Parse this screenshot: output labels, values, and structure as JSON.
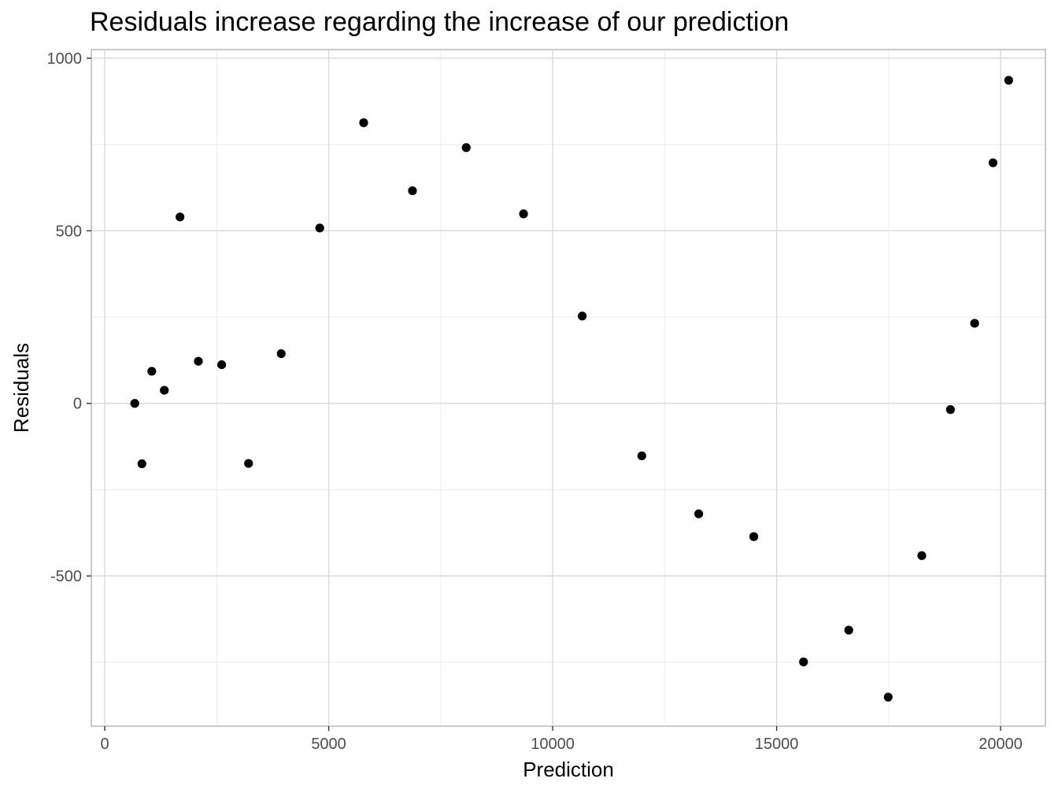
{
  "chart_data": {
    "type": "scatter",
    "title": "Residuals increase regarding the increase of our prediction",
    "xlabel": "Prediction",
    "ylabel": "Residuals",
    "xlim": [
      -300,
      21000
    ],
    "ylim": [
      -935,
      1025
    ],
    "x_ticks": [
      0,
      5000,
      10000,
      15000,
      20000
    ],
    "x_tick_labels": [
      "0",
      "5000",
      "10000",
      "15000",
      "20000"
    ],
    "y_ticks": [
      -500,
      0,
      500,
      1000
    ],
    "y_tick_labels": [
      "-500",
      "0",
      "500",
      "1000"
    ],
    "x_minor": [
      2500,
      7500,
      12500,
      17500
    ],
    "y_minor": [
      -750,
      -250,
      250,
      750
    ],
    "grid": true,
    "legend": "none",
    "point_color": "#000000",
    "points": [
      {
        "x": 670,
        "y": 0
      },
      {
        "x": 830,
        "y": -175
      },
      {
        "x": 1050,
        "y": 93
      },
      {
        "x": 1330,
        "y": 38
      },
      {
        "x": 1680,
        "y": 540
      },
      {
        "x": 2090,
        "y": 122
      },
      {
        "x": 2610,
        "y": 112
      },
      {
        "x": 3210,
        "y": -174
      },
      {
        "x": 3940,
        "y": 144
      },
      {
        "x": 4800,
        "y": 508
      },
      {
        "x": 5780,
        "y": 813
      },
      {
        "x": 6870,
        "y": 616
      },
      {
        "x": 8070,
        "y": 741
      },
      {
        "x": 9350,
        "y": 549
      },
      {
        "x": 10660,
        "y": 253
      },
      {
        "x": 11990,
        "y": -152
      },
      {
        "x": 13260,
        "y": -320
      },
      {
        "x": 14490,
        "y": -386
      },
      {
        "x": 15600,
        "y": -749
      },
      {
        "x": 16610,
        "y": -657
      },
      {
        "x": 17490,
        "y": -851
      },
      {
        "x": 18240,
        "y": -441
      },
      {
        "x": 18880,
        "y": -18
      },
      {
        "x": 19420,
        "y": 232
      },
      {
        "x": 19830,
        "y": 697
      },
      {
        "x": 20180,
        "y": 936
      }
    ]
  }
}
